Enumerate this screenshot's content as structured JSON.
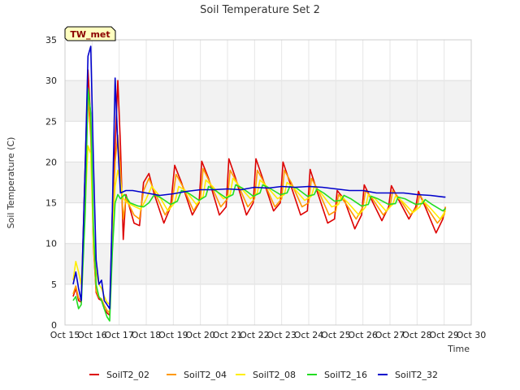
{
  "chart_data": {
    "type": "line",
    "title": "Soil Temperature Set 2",
    "xlabel": "Time",
    "ylabel": "Soil Temperature (C)",
    "ylim": [
      0,
      35
    ],
    "yticks": [
      0,
      5,
      10,
      15,
      20,
      25,
      30,
      35
    ],
    "xlim": [
      15,
      30
    ],
    "xtick_values": [
      15,
      16,
      17,
      18,
      19,
      20,
      21,
      22,
      23,
      24,
      25,
      26,
      27,
      28,
      29,
      30
    ],
    "xtick_labels": [
      "Oct 15",
      "Oct 16",
      "Oct 17",
      "Oct 18",
      "Oct 19",
      "Oct 20",
      "Oct 21",
      "Oct 22",
      "Oct 23",
      "Oct 24",
      "Oct 25",
      "Oct 26",
      "Oct 27",
      "Oct 28",
      "Oct 29",
      "Oct 30"
    ],
    "grid": true,
    "legend_position": "bottom",
    "badge": "TW_met",
    "series": [
      {
        "name": "SoilT2_02",
        "color": "#dd0000",
        "x": [
          15.3,
          15.4,
          15.5,
          15.6,
          15.75,
          15.85,
          15.95,
          16.05,
          16.15,
          16.25,
          16.35,
          16.45,
          16.55,
          16.65,
          16.75,
          16.85,
          16.95,
          17.05,
          17.15,
          17.25,
          17.55,
          17.75,
          17.9,
          18.1,
          18.3,
          18.65,
          18.9,
          19.05,
          19.3,
          19.7,
          19.95,
          20.05,
          20.3,
          20.7,
          20.95,
          21.05,
          21.3,
          21.7,
          21.95,
          22.05,
          22.3,
          22.7,
          22.95,
          23.05,
          23.3,
          23.7,
          23.95,
          24.05,
          24.3,
          24.7,
          24.95,
          25.05,
          25.3,
          25.7,
          25.95,
          26.05,
          26.3,
          26.7,
          26.95,
          27.05,
          27.3,
          27.7,
          27.95,
          28.05,
          28.3,
          28.7,
          28.95,
          29.05
        ],
        "y": [
          3.5,
          4.5,
          3.0,
          2.8,
          20.0,
          31.3,
          25.0,
          10.0,
          4.0,
          3.2,
          3.0,
          2.0,
          1.5,
          1.2,
          14.0,
          22.0,
          30.0,
          22.0,
          10.5,
          16.0,
          12.5,
          12.2,
          17.5,
          18.6,
          16.0,
          12.5,
          14.5,
          19.6,
          17.5,
          13.5,
          15.0,
          20.1,
          18.0,
          13.5,
          14.5,
          20.4,
          18.0,
          13.5,
          15.0,
          20.4,
          18.0,
          14.0,
          15.0,
          20.0,
          17.5,
          13.5,
          14.0,
          19.1,
          16.5,
          12.5,
          13.0,
          16.5,
          15.5,
          11.8,
          13.5,
          17.2,
          15.5,
          12.8,
          14.5,
          17.1,
          15.5,
          13.0,
          14.5,
          16.4,
          14.5,
          11.3,
          13.0,
          14.5
        ]
      },
      {
        "name": "SoilT2_04",
        "color": "#ff9900",
        "x": [
          15.3,
          15.4,
          15.5,
          15.6,
          15.75,
          15.85,
          15.95,
          16.05,
          16.15,
          16.25,
          16.35,
          16.45,
          16.55,
          16.65,
          16.75,
          16.85,
          16.95,
          17.05,
          17.15,
          17.25,
          17.55,
          17.75,
          17.9,
          18.1,
          18.35,
          18.7,
          18.95,
          19.1,
          19.35,
          19.75,
          20.0,
          20.1,
          20.35,
          20.75,
          21.0,
          21.1,
          21.35,
          21.75,
          22.0,
          22.1,
          22.35,
          22.75,
          23.0,
          23.1,
          23.35,
          23.75,
          24.0,
          24.1,
          24.35,
          24.75,
          25.0,
          25.1,
          25.35,
          25.75,
          26.0,
          26.1,
          26.35,
          26.75,
          27.0,
          27.1,
          27.35,
          27.75,
          28.0,
          28.1,
          28.35,
          28.75,
          29.0,
          29.05
        ],
        "y": [
          3.8,
          4.8,
          3.3,
          3.0,
          18.0,
          28.0,
          23.0,
          9.5,
          4.2,
          3.4,
          3.2,
          2.4,
          1.8,
          1.5,
          12.0,
          20.0,
          23.3,
          19.0,
          13.0,
          15.5,
          13.5,
          13.0,
          16.5,
          18.0,
          16.0,
          13.5,
          15.0,
          18.5,
          17.0,
          14.0,
          15.5,
          19.2,
          17.5,
          14.5,
          15.5,
          19.0,
          17.5,
          14.5,
          15.5,
          19.0,
          17.5,
          14.5,
          15.5,
          19.0,
          17.5,
          14.5,
          15.0,
          18.0,
          16.5,
          13.5,
          14.0,
          16.0,
          15.0,
          13.0,
          14.5,
          16.5,
          15.5,
          13.5,
          14.5,
          16.5,
          15.5,
          13.5,
          14.5,
          16.0,
          14.5,
          12.5,
          13.5,
          14.5
        ]
      },
      {
        "name": "SoilT2_08",
        "color": "#ffee00",
        "x": [
          15.3,
          15.4,
          15.5,
          15.6,
          15.75,
          15.85,
          15.95,
          16.05,
          16.15,
          16.25,
          16.35,
          16.45,
          16.55,
          16.65,
          16.75,
          16.85,
          16.95,
          17.05,
          17.15,
          17.3,
          17.6,
          17.8,
          18.0,
          18.2,
          18.45,
          18.8,
          19.05,
          19.2,
          19.45,
          19.85,
          20.1,
          20.2,
          20.45,
          20.85,
          21.1,
          21.2,
          21.45,
          21.85,
          22.1,
          22.2,
          22.45,
          22.85,
          23.1,
          23.2,
          23.45,
          23.85,
          24.1,
          24.2,
          24.45,
          24.85,
          25.1,
          25.2,
          25.45,
          25.85,
          26.1,
          26.2,
          26.45,
          26.85,
          27.1,
          27.2,
          27.45,
          27.85,
          28.1,
          28.2,
          28.45,
          28.85,
          29.05
        ],
        "y": [
          5.5,
          7.8,
          6.5,
          5.0,
          15.0,
          22.0,
          21.0,
          10.0,
          6.5,
          5.0,
          4.5,
          3.5,
          2.8,
          2.5,
          11.0,
          17.0,
          19.0,
          17.5,
          15.5,
          15.0,
          14.5,
          14.2,
          15.5,
          17.0,
          16.0,
          14.0,
          15.0,
          17.0,
          16.5,
          14.8,
          15.8,
          17.8,
          17.0,
          15.5,
          16.0,
          18.0,
          17.0,
          15.5,
          16.2,
          17.8,
          17.0,
          15.5,
          16.0,
          17.5,
          16.8,
          15.3,
          15.8,
          17.0,
          16.2,
          14.5,
          14.8,
          15.8,
          15.0,
          13.5,
          14.5,
          16.0,
          15.5,
          14.0,
          14.8,
          15.8,
          15.2,
          13.8,
          14.5,
          15.3,
          14.5,
          13.0,
          14.0
        ]
      },
      {
        "name": "SoilT2_16",
        "color": "#22dd22",
        "x": [
          15.3,
          15.4,
          15.5,
          15.6,
          15.75,
          15.85,
          15.95,
          16.05,
          16.15,
          16.25,
          16.35,
          16.45,
          16.55,
          16.65,
          16.75,
          16.85,
          16.95,
          17.05,
          17.2,
          17.4,
          17.7,
          17.9,
          18.1,
          18.3,
          18.55,
          18.9,
          19.15,
          19.3,
          19.55,
          19.95,
          20.2,
          20.3,
          20.55,
          20.95,
          21.2,
          21.3,
          21.55,
          21.95,
          22.2,
          22.3,
          22.55,
          22.95,
          23.2,
          23.3,
          23.55,
          23.95,
          24.2,
          24.3,
          24.55,
          24.95,
          25.2,
          25.3,
          25.55,
          25.95,
          26.2,
          26.3,
          26.55,
          26.95,
          27.2,
          27.3,
          27.55,
          27.95,
          28.2,
          28.3,
          28.55,
          28.95,
          29.05
        ],
        "y": [
          3.0,
          3.5,
          2.0,
          2.5,
          14.0,
          29.0,
          26.0,
          12.0,
          5.0,
          3.5,
          3.0,
          2.0,
          1.0,
          0.5,
          9.0,
          15.0,
          16.0,
          15.5,
          16.0,
          15.0,
          14.6,
          14.5,
          15.0,
          16.0,
          15.6,
          14.8,
          15.2,
          16.5,
          16.2,
          15.3,
          15.8,
          17.0,
          16.5,
          15.6,
          16.0,
          17.2,
          16.8,
          15.8,
          16.2,
          17.2,
          16.8,
          16.0,
          16.2,
          17.0,
          16.8,
          15.8,
          16.0,
          16.7,
          16.2,
          15.2,
          15.3,
          15.9,
          15.5,
          14.6,
          14.8,
          15.8,
          15.5,
          14.8,
          14.9,
          15.7,
          15.5,
          14.8,
          14.9,
          15.4,
          14.8,
          14.0,
          14.3
        ]
      },
      {
        "name": "SoilT2_32",
        "color": "#0000cc",
        "x": [
          15.3,
          15.4,
          15.5,
          15.6,
          15.75,
          15.85,
          15.95,
          16.05,
          16.15,
          16.25,
          16.35,
          16.45,
          16.55,
          16.65,
          16.75,
          16.85,
          16.95,
          17.05,
          17.25,
          17.5,
          18.0,
          18.5,
          19.0,
          19.5,
          20.0,
          20.5,
          21.0,
          21.5,
          22.0,
          22.5,
          23.0,
          23.5,
          24.0,
          24.5,
          25.0,
          25.5,
          26.0,
          26.5,
          27.0,
          27.5,
          28.0,
          28.5,
          29.0,
          29.05
        ],
        "y": [
          5.0,
          6.5,
          4.5,
          3.0,
          20.0,
          33.0,
          34.2,
          20.0,
          8.0,
          5.0,
          5.5,
          3.0,
          2.5,
          2.0,
          14.0,
          30.3,
          22.0,
          16.2,
          16.5,
          16.5,
          16.2,
          15.9,
          16.1,
          16.4,
          16.6,
          16.6,
          16.7,
          16.6,
          16.9,
          16.8,
          17.0,
          16.9,
          17.0,
          16.9,
          16.7,
          16.5,
          16.5,
          16.2,
          16.2,
          16.2,
          16.0,
          15.9,
          15.7,
          15.7
        ]
      }
    ]
  }
}
